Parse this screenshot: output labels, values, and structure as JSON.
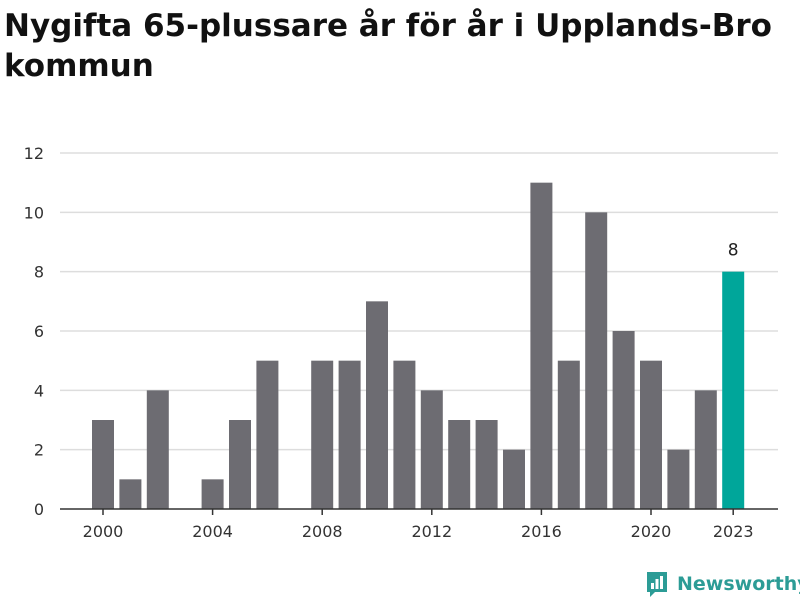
{
  "title": "Nygifta 65-plussare år för år i Upplands-Bro kommun",
  "brand": {
    "name": "Newsworthy",
    "icon": "newsworthy-logo-icon",
    "color": "#2c9c96"
  },
  "chart_data": {
    "type": "bar",
    "title": "Nygifta 65-plussare år för år i Upplands-Bro kommun",
    "xlabel": "",
    "ylabel": "",
    "categories": [
      2000,
      2001,
      2002,
      2003,
      2004,
      2005,
      2006,
      2007,
      2008,
      2009,
      2010,
      2011,
      2012,
      2013,
      2014,
      2015,
      2016,
      2017,
      2018,
      2019,
      2020,
      2021,
      2022,
      2023
    ],
    "values": [
      3,
      1,
      4,
      0,
      1,
      3,
      5,
      0,
      5,
      5,
      7,
      5,
      4,
      3,
      3,
      2,
      11,
      5,
      10,
      6,
      5,
      2,
      4,
      8
    ],
    "ylim": [
      0,
      12
    ],
    "yticks": [
      0,
      2,
      4,
      6,
      8,
      10,
      12
    ],
    "xtick_labels": [
      2000,
      2004,
      2008,
      2012,
      2016,
      2020,
      2023
    ],
    "grid": true,
    "bar_color": "#6d6c72",
    "highlight_color": "#00a69a",
    "highlight_category": 2023,
    "highlight_label": "8"
  }
}
